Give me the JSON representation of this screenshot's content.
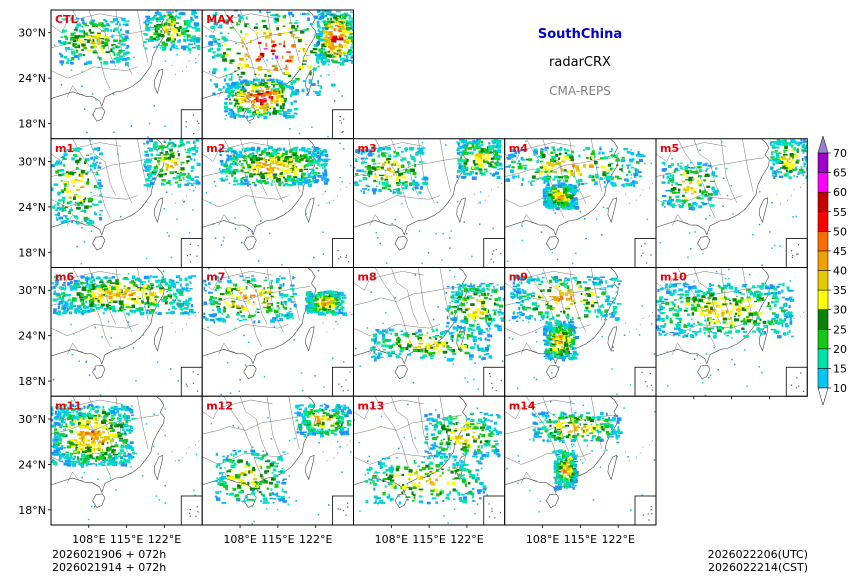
{
  "title": {
    "region": "SouthChina",
    "variable": "radarCRX",
    "system": "CMA-REPS",
    "region_color": "#0000cc",
    "system_color": "#808080"
  },
  "footer": {
    "init_utc": "2026021906  +  072h",
    "init_cst": "2026021914  +  072h",
    "valid_utc": "2026022206(UTC)",
    "valid_cst": "2026022214(CST)"
  },
  "chart_data": {
    "type": "heatmap",
    "title": "SouthChina radarCRX CMA-REPS",
    "xlabel": "",
    "ylabel": "",
    "xlim": [
      101,
      129
    ],
    "ylim": [
      16,
      33
    ],
    "x_ticks": [
      108,
      115,
      122
    ],
    "y_ticks": [
      18,
      24,
      30
    ],
    "x_tick_labels": [
      "108°E",
      "115°E",
      "122°E"
    ],
    "y_tick_labels": [
      "18°N",
      "24°N",
      "30°N"
    ],
    "panel_label_color": "#e8000b",
    "panels": [
      {
        "label": "CTL",
        "seed": 11,
        "coverage": 0.45,
        "intensity": 0.45,
        "bands": [
          {
            "lon": [
              102,
              115
            ],
            "lat": [
              26,
              32
            ]
          },
          {
            "lon": [
              118,
              128
            ],
            "lat": [
              28,
              33
            ]
          }
        ]
      },
      {
        "label": "MAX",
        "seed": 23,
        "coverage": 0.95,
        "intensity": 0.9,
        "bands": [
          {
            "lon": [
              102,
              125
            ],
            "lat": [
              22,
              33
            ]
          },
          {
            "lon": [
              105,
              118
            ],
            "lat": [
              19,
              24
            ]
          },
          {
            "lon": [
              122,
              129
            ],
            "lat": [
              26,
              33
            ]
          }
        ]
      },
      {
        "label": "m1",
        "seed": 31,
        "coverage": 0.4,
        "intensity": 0.5,
        "bands": [
          {
            "lon": [
              101,
              110
            ],
            "lat": [
              22,
              32
            ]
          },
          {
            "lon": [
              118,
              128
            ],
            "lat": [
              27,
              33
            ]
          }
        ]
      },
      {
        "label": "m2",
        "seed": 37,
        "coverage": 0.55,
        "intensity": 0.6,
        "bands": [
          {
            "lon": [
              104,
              124
            ],
            "lat": [
              27,
              32
            ]
          }
        ]
      },
      {
        "label": "m3",
        "seed": 41,
        "coverage": 0.45,
        "intensity": 0.5,
        "bands": [
          {
            "lon": [
              101,
              114
            ],
            "lat": [
              26,
              32
            ]
          },
          {
            "lon": [
              120,
              128
            ],
            "lat": [
              28,
              33
            ]
          }
        ]
      },
      {
        "label": "m4",
        "seed": 43,
        "coverage": 0.6,
        "intensity": 0.55,
        "bands": [
          {
            "lon": [
              101,
              126
            ],
            "lat": [
              27,
              32
            ]
          },
          {
            "lon": [
              108,
              114
            ],
            "lat": [
              24,
              27
            ]
          }
        ]
      },
      {
        "label": "m5",
        "seed": 47,
        "coverage": 0.35,
        "intensity": 0.5,
        "bands": [
          {
            "lon": [
              102,
              112
            ],
            "lat": [
              24,
              30
            ]
          },
          {
            "lon": [
              122,
              129
            ],
            "lat": [
              28,
              33
            ]
          }
        ]
      },
      {
        "label": "m6",
        "seed": 53,
        "coverage": 0.6,
        "intensity": 0.55,
        "bands": [
          {
            "lon": [
              101,
              127
            ],
            "lat": [
              27,
              32
            ]
          }
        ]
      },
      {
        "label": "m7",
        "seed": 59,
        "coverage": 0.5,
        "intensity": 0.6,
        "bands": [
          {
            "lon": [
              101,
              118
            ],
            "lat": [
              26,
              32
            ]
          },
          {
            "lon": [
              120,
              127
            ],
            "lat": [
              27,
              30
            ]
          }
        ]
      },
      {
        "label": "m8",
        "seed": 61,
        "coverage": 0.45,
        "intensity": 0.5,
        "bands": [
          {
            "lon": [
              104,
              126
            ],
            "lat": [
              21,
              25
            ]
          },
          {
            "lon": [
              118,
              129
            ],
            "lat": [
              25,
              31
            ]
          }
        ]
      },
      {
        "label": "m9",
        "seed": 67,
        "coverage": 0.55,
        "intensity": 0.6,
        "bands": [
          {
            "lon": [
              102,
              122
            ],
            "lat": [
              26,
              32
            ]
          },
          {
            "lon": [
              108,
              114
            ],
            "lat": [
              21,
              26
            ]
          }
        ]
      },
      {
        "label": "m10",
        "seed": 71,
        "coverage": 0.5,
        "intensity": 0.5,
        "bands": [
          {
            "lon": [
              101,
              126
            ],
            "lat": [
              24,
              31
            ]
          }
        ]
      },
      {
        "label": "m11",
        "seed": 73,
        "coverage": 0.65,
        "intensity": 0.65,
        "bands": [
          {
            "lon": [
              101,
              116
            ],
            "lat": [
              24,
              32
            ]
          }
        ]
      },
      {
        "label": "m12",
        "seed": 79,
        "coverage": 0.45,
        "intensity": 0.5,
        "bands": [
          {
            "lon": [
              103,
              116
            ],
            "lat": [
              19,
              26
            ]
          },
          {
            "lon": [
              118,
              128
            ],
            "lat": [
              28,
              32
            ]
          }
        ]
      },
      {
        "label": "m13",
        "seed": 83,
        "coverage": 0.5,
        "intensity": 0.5,
        "bands": [
          {
            "lon": [
              103,
              125
            ],
            "lat": [
              19,
              25
            ]
          },
          {
            "lon": [
              114,
              128
            ],
            "lat": [
              25,
              31
            ]
          }
        ]
      },
      {
        "label": "m14",
        "seed": 89,
        "coverage": 0.45,
        "intensity": 0.55,
        "bands": [
          {
            "lon": [
              106,
              122
            ],
            "lat": [
              27,
              31
            ]
          },
          {
            "lon": [
              110,
              114
            ],
            "lat": [
              21,
              26
            ]
          }
        ]
      }
    ],
    "colorbar": {
      "levels": [
        10,
        15,
        20,
        25,
        30,
        35,
        40,
        45,
        50,
        55,
        60,
        65,
        70
      ],
      "colors": [
        "#1e90ff",
        "#00c8f0",
        "#00e4aa",
        "#14c814",
        "#0a820a",
        "#ffff00",
        "#e6c800",
        "#f0a000",
        "#fa6e00",
        "#ff0000",
        "#c80000",
        "#ff00ff",
        "#a000c8",
        "#9b7fd4"
      ],
      "extend": "both",
      "over_color": "#9b7fd4"
    }
  }
}
